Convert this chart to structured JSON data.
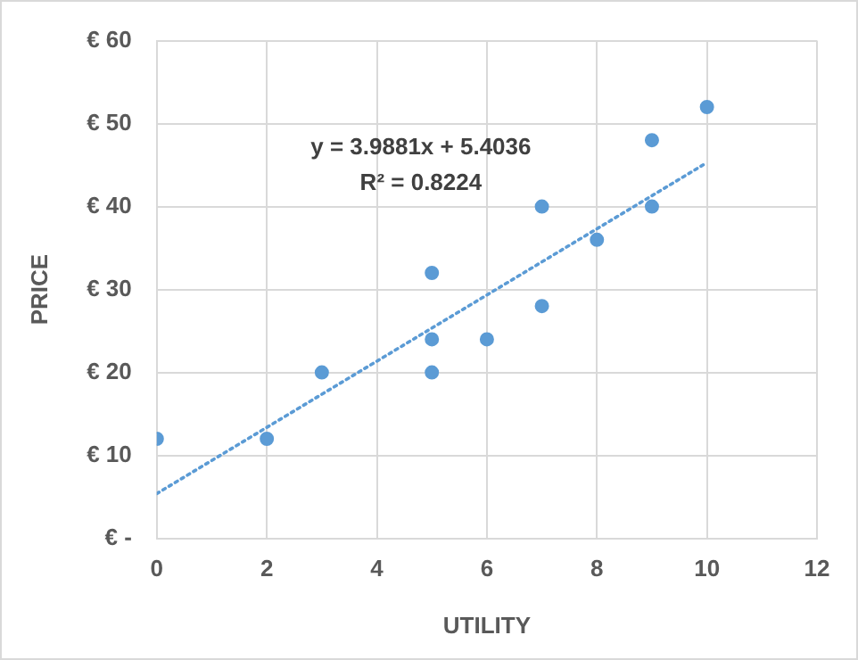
{
  "chart_data": {
    "type": "scatter",
    "xlabel": "UTILITY",
    "ylabel": "PRICE",
    "series": [
      {
        "color": "#5b9bd5",
        "x": [
          0,
          2,
          3,
          5,
          5,
          5,
          6,
          7,
          7,
          8,
          9,
          9,
          10
        ],
        "values": [
          12,
          12,
          20,
          32,
          24,
          20,
          24,
          40,
          28,
          36,
          48,
          40,
          52
        ],
        "marker": "circle"
      },
      {
        "type": "line",
        "color": "#5b9bd5",
        "x": [
          0,
          10
        ],
        "values": [
          5.4,
          45.3
        ],
        "line_style": "dotted",
        "marker": "none"
      }
    ],
    "xlim": [
      0,
      12
    ],
    "xticks": [
      0,
      2,
      4,
      6,
      8,
      10,
      12
    ],
    "ylim": [
      0,
      60
    ],
    "yticks": [
      {
        "value": 0,
        "label": "€ -"
      },
      {
        "value": 10,
        "label": "€ 10"
      },
      {
        "value": 20,
        "label": "€ 20"
      },
      {
        "value": 30,
        "label": "€ 30"
      },
      {
        "value": 40,
        "label": "€ 40"
      },
      {
        "value": 50,
        "label": "€ 50"
      },
      {
        "value": 60,
        "label": "€ 60"
      }
    ],
    "grid": true,
    "legend": false,
    "annotations": [
      "y = 3.9881x + 5.4036",
      "R² = 0.8224"
    ]
  }
}
